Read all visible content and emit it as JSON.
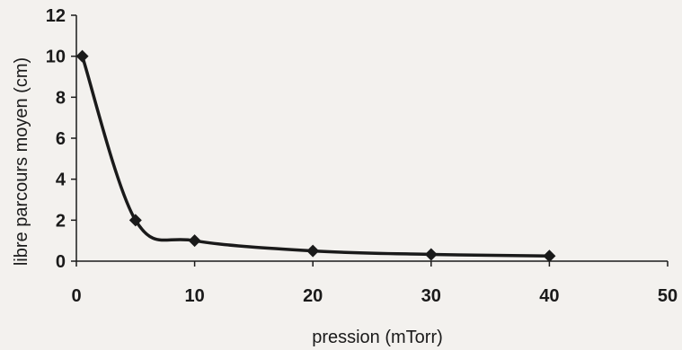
{
  "chart_data": {
    "type": "scatter",
    "xlabel": "pression (mTorr)",
    "ylabel": "libre parcours moyen (cm)",
    "xlim": [
      0,
      50
    ],
    "ylim": [
      0,
      12
    ],
    "x_ticks": [
      "0",
      "10",
      "20",
      "30",
      "40",
      "50"
    ],
    "y_ticks": [
      "0",
      "2",
      "4",
      "6",
      "8",
      "10",
      "12"
    ],
    "grid": false,
    "legend": "none",
    "series": [
      {
        "x": [
          0.5,
          5,
          10,
          20,
          30,
          40
        ],
        "y": [
          10,
          2,
          1,
          0.5,
          0.33,
          0.25
        ],
        "marker": "diamond",
        "line": "smooth",
        "color": "#1a1a1a"
      }
    ]
  }
}
